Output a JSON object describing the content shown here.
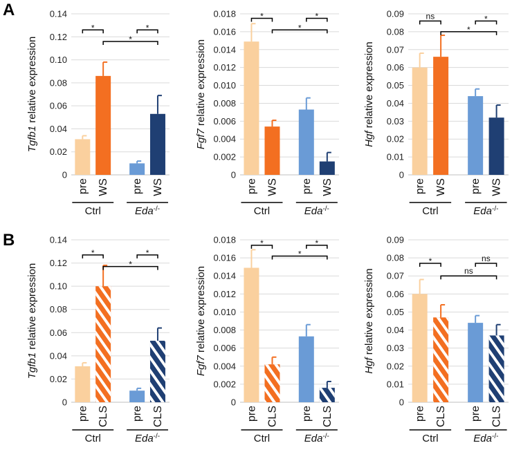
{
  "panel_letters": [
    "A",
    "B"
  ],
  "chart_data": [
    {
      "type": "bar",
      "panel": "A",
      "gene": "Tgfb1",
      "ylabel_suffix": " relative expression",
      "categories": [
        "pre",
        "WS",
        "pre",
        "WS"
      ],
      "groups": [
        {
          "label": "Ctrl",
          "sup": ""
        },
        {
          "label": "Eda",
          "sup": "-/-"
        }
      ],
      "values": [
        0.031,
        0.086,
        0.01,
        0.053
      ],
      "errors": [
        0.003,
        0.012,
        0.002,
        0.016
      ],
      "ylim": [
        0,
        0.14
      ],
      "yticks": [
        "0",
        "0.02",
        "0.04",
        "0.06",
        "0.08",
        "0.10",
        "0.12",
        "0.14"
      ],
      "colors": [
        "#FAD09E",
        "#F36F21",
        "#6A9BD6",
        "#1F3F73"
      ],
      "hatched": [
        false,
        false,
        false,
        false
      ],
      "grid": true,
      "significance": [
        {
          "from": 0,
          "to": 1,
          "level": 0.126,
          "label": "*"
        },
        {
          "from": 2,
          "to": 3,
          "level": 0.126,
          "label": "*"
        },
        {
          "from": 1,
          "to": 3,
          "level": 0.116,
          "label": "*"
        }
      ]
    },
    {
      "type": "bar",
      "panel": "A",
      "gene": "Fgf7",
      "ylabel_suffix": " relative expression",
      "categories": [
        "pre",
        "WS",
        "pre",
        "WS"
      ],
      "groups": [
        {
          "label": "Ctrl",
          "sup": ""
        },
        {
          "label": "Eda",
          "sup": "-/-"
        }
      ],
      "values": [
        0.0149,
        0.0054,
        0.0073,
        0.0015
      ],
      "errors": [
        0.002,
        0.0007,
        0.0013,
        0.001
      ],
      "ylim": [
        0,
        0.018
      ],
      "yticks": [
        "0",
        "0.002",
        "0.004",
        "0.006",
        "0.008",
        "0.010",
        "0.012",
        "0.014",
        "0.016",
        "0.018"
      ],
      "colors": [
        "#FAD09E",
        "#F36F21",
        "#6A9BD6",
        "#1F3F73"
      ],
      "hatched": [
        false,
        false,
        false,
        false
      ],
      "grid": true,
      "significance": [
        {
          "from": 0,
          "to": 1,
          "level": 0.0175,
          "label": "*"
        },
        {
          "from": 2,
          "to": 3,
          "level": 0.0175,
          "label": "*"
        },
        {
          "from": 1,
          "to": 3,
          "level": 0.0162,
          "label": "*"
        }
      ]
    },
    {
      "type": "bar",
      "panel": "A",
      "gene": "Hgf",
      "ylabel_suffix": " relative expression",
      "categories": [
        "pre",
        "WS",
        "pre",
        "WS"
      ],
      "groups": [
        {
          "label": "Ctrl",
          "sup": ""
        },
        {
          "label": "Eda",
          "sup": "-/-"
        }
      ],
      "values": [
        0.06,
        0.066,
        0.044,
        0.032
      ],
      "errors": [
        0.008,
        0.012,
        0.004,
        0.007
      ],
      "ylim": [
        0,
        0.09
      ],
      "yticks": [
        "0",
        "0.01",
        "0.02",
        "0.03",
        "0.04",
        "0.05",
        "0.06",
        "0.07",
        "0.08",
        "0.09"
      ],
      "colors": [
        "#FAD09E",
        "#F36F21",
        "#6A9BD6",
        "#1F3F73"
      ],
      "hatched": [
        false,
        false,
        false,
        false
      ],
      "grid": true,
      "significance": [
        {
          "from": 0,
          "to": 1,
          "level": 0.086,
          "label": "ns"
        },
        {
          "from": 2,
          "to": 3,
          "level": 0.086,
          "label": "*"
        },
        {
          "from": 1,
          "to": 3,
          "level": 0.08,
          "label": "*"
        }
      ]
    },
    {
      "type": "bar",
      "panel": "B",
      "gene": "Tgfb1",
      "ylabel_suffix": " relative expression",
      "categories": [
        "pre",
        "CLS",
        "pre",
        "CLS"
      ],
      "groups": [
        {
          "label": "Ctrl",
          "sup": ""
        },
        {
          "label": "Eda",
          "sup": "-/-"
        }
      ],
      "values": [
        0.031,
        0.1,
        0.01,
        0.053
      ],
      "errors": [
        0.003,
        0.018,
        0.002,
        0.011
      ],
      "ylim": [
        0,
        0.14
      ],
      "yticks": [
        "0",
        "0.02",
        "0.04",
        "0.06",
        "0.08",
        "0.10",
        "0.12",
        "0.14"
      ],
      "colors": [
        "#FAD09E",
        "#F36F21",
        "#6A9BD6",
        "#1F3F73"
      ],
      "hatched": [
        false,
        true,
        false,
        true
      ],
      "grid": true,
      "significance": [
        {
          "from": 0,
          "to": 1,
          "level": 0.127,
          "label": "*"
        },
        {
          "from": 2,
          "to": 3,
          "level": 0.127,
          "label": "*"
        },
        {
          "from": 1,
          "to": 3,
          "level": 0.117,
          "label": "*"
        }
      ]
    },
    {
      "type": "bar",
      "panel": "B",
      "gene": "Fgf7",
      "ylabel_suffix": " relative expression",
      "categories": [
        "pre",
        "CLS",
        "pre",
        "CLS"
      ],
      "groups": [
        {
          "label": "Ctrl",
          "sup": ""
        },
        {
          "label": "Eda",
          "sup": "-/-"
        }
      ],
      "values": [
        0.0149,
        0.0042,
        0.0073,
        0.0016
      ],
      "errors": [
        0.002,
        0.0008,
        0.0013,
        0.0007
      ],
      "ylim": [
        0,
        0.018
      ],
      "yticks": [
        "0",
        "0.002",
        "0.004",
        "0.006",
        "0.008",
        "0.010",
        "0.012",
        "0.014",
        "0.016",
        "0.018"
      ],
      "colors": [
        "#FAD09E",
        "#F36F21",
        "#6A9BD6",
        "#1F3F73"
      ],
      "hatched": [
        false,
        true,
        false,
        true
      ],
      "grid": true,
      "significance": [
        {
          "from": 0,
          "to": 1,
          "level": 0.0174,
          "label": "*"
        },
        {
          "from": 2,
          "to": 3,
          "level": 0.0174,
          "label": "*"
        },
        {
          "from": 1,
          "to": 3,
          "level": 0.0162,
          "label": "*"
        }
      ]
    },
    {
      "type": "bar",
      "panel": "B",
      "gene": "Hgf",
      "ylabel_suffix": " relative expression",
      "categories": [
        "pre",
        "CLS",
        "pre",
        "CLS"
      ],
      "groups": [
        {
          "label": "Ctrl",
          "sup": ""
        },
        {
          "label": "Eda",
          "sup": "-/-"
        }
      ],
      "values": [
        0.06,
        0.047,
        0.044,
        0.037
      ],
      "errors": [
        0.008,
        0.007,
        0.004,
        0.006
      ],
      "ylim": [
        0,
        0.09
      ],
      "yticks": [
        "0",
        "0.01",
        "0.02",
        "0.03",
        "0.04",
        "0.05",
        "0.06",
        "0.07",
        "0.08",
        "0.09"
      ],
      "colors": [
        "#FAD09E",
        "#F36F21",
        "#6A9BD6",
        "#1F3F73"
      ],
      "hatched": [
        false,
        true,
        false,
        true
      ],
      "grid": true,
      "significance": [
        {
          "from": 0,
          "to": 1,
          "level": 0.077,
          "label": "*"
        },
        {
          "from": 2,
          "to": 3,
          "level": 0.077,
          "label": "ns"
        },
        {
          "from": 1,
          "to": 3,
          "level": 0.07,
          "label": "ns"
        }
      ]
    }
  ]
}
